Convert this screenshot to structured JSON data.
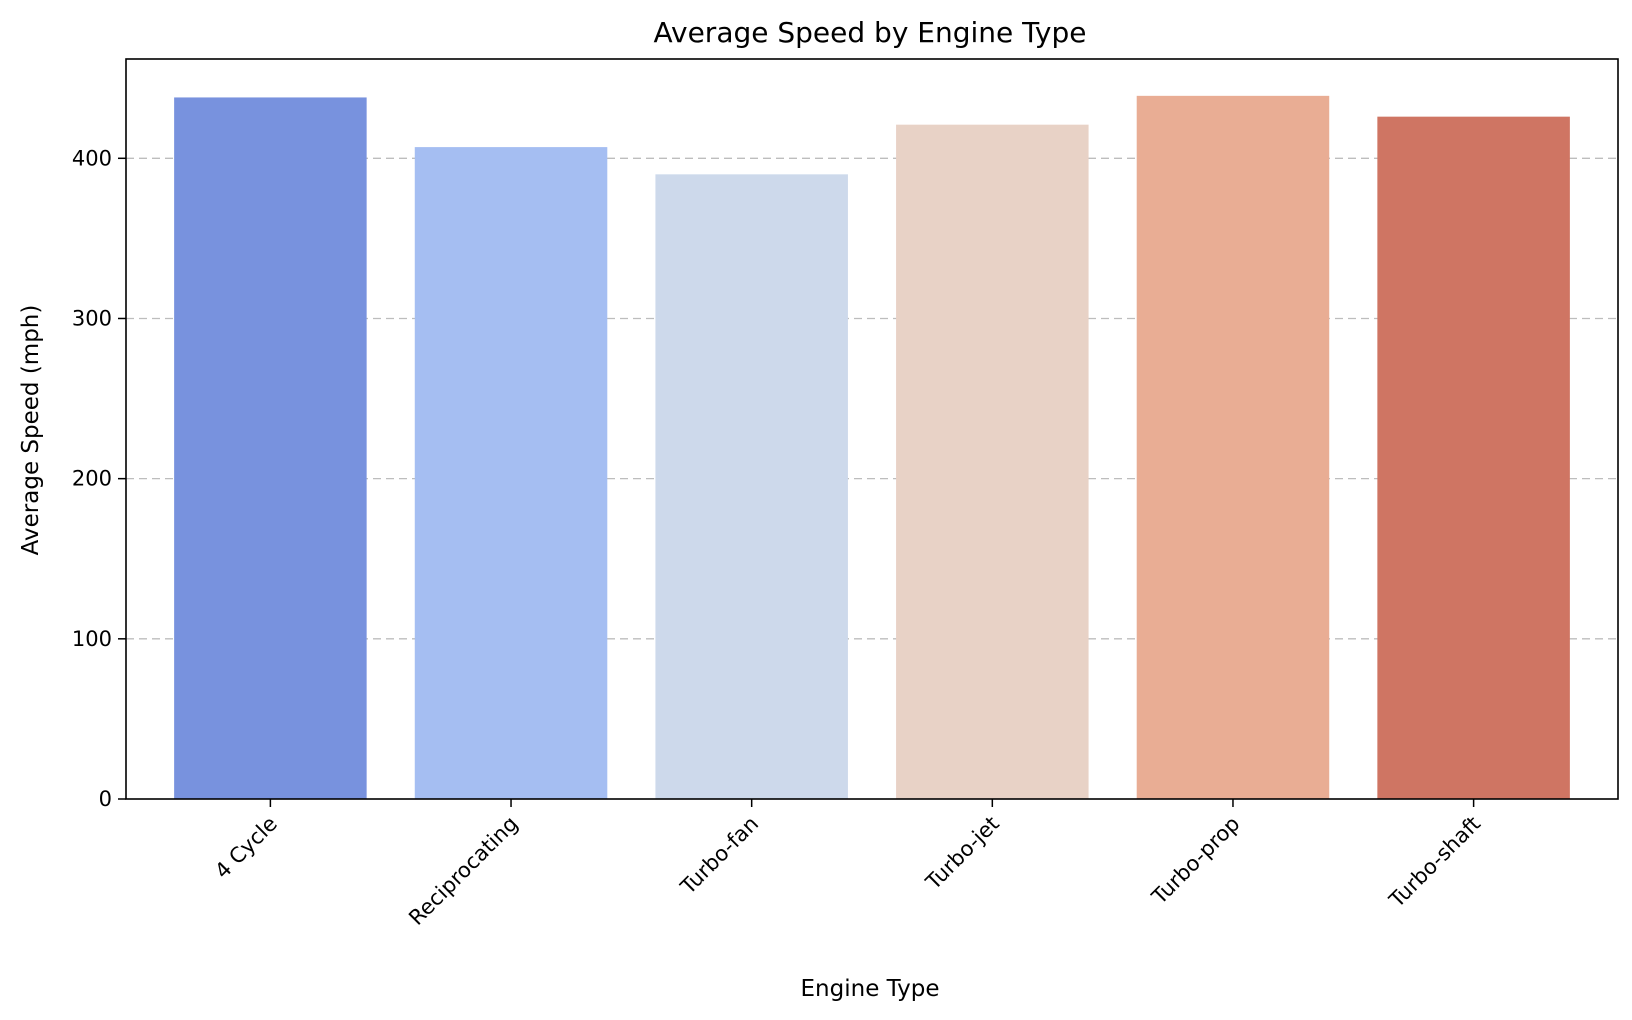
{
  "chart_data": {
    "type": "bar",
    "title": "Average Speed by Engine Type",
    "xlabel": "Engine Type",
    "ylabel": "Average Speed (mph)",
    "categories": [
      "4 Cycle",
      "Reciprocating",
      "Turbo-fan",
      "Turbo-jet",
      "Turbo-prop",
      "Turbo-shaft"
    ],
    "values": [
      438,
      407,
      390,
      421,
      439,
      426
    ],
    "colors": [
      "#7892de",
      "#a5bef2",
      "#cdd9eb",
      "#e8d2c6",
      "#e9ad94",
      "#cf7563"
    ],
    "ylim": [
      0,
      462
    ],
    "yticks": [
      0,
      100,
      200,
      300,
      400
    ],
    "grid": "y-dashed",
    "legend": "none"
  }
}
